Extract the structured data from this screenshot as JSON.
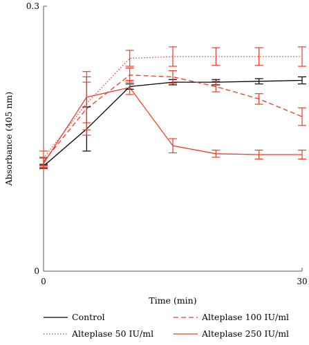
{
  "chart_data": {
    "type": "line",
    "xlabel": "Time (min)",
    "ylabel": "Absorbance (405 nm)",
    "xlim": [
      0,
      30
    ],
    "ylim": [
      0,
      0.3
    ],
    "x_ticks": [
      {
        "value": 0,
        "label": "0"
      },
      {
        "value": 30,
        "label": "30"
      }
    ],
    "y_ticks": [
      {
        "value": 0,
        "label": "0"
      },
      {
        "value": 0.3,
        "label": "0.3"
      }
    ],
    "x": [
      0,
      5,
      10,
      15,
      20,
      25,
      30
    ],
    "grid": false,
    "legend_position": "bottom",
    "series": [
      {
        "name": "Control",
        "color": "#000000",
        "dash": "solid",
        "values": [
          0.119,
          0.161,
          0.209,
          0.214,
          0.214,
          0.215,
          0.216
        ],
        "errors": [
          0.002,
          0.025,
          0.003,
          0.003,
          0.003,
          0.003,
          0.004
        ]
      },
      {
        "name": "Alteplase 50 IU/ml",
        "color": "#ee3b24",
        "dash": "dotted",
        "values": [
          0.128,
          0.19,
          0.241,
          0.243,
          0.243,
          0.243,
          0.243
        ],
        "errors": [
          0.008,
          0.03,
          0.009,
          0.011,
          0.01,
          0.01,
          0.011
        ]
      },
      {
        "name": "Alteplase 100 IU/ml",
        "color": "#ee3b24",
        "dash": "dashed",
        "values": [
          0.124,
          0.184,
          0.222,
          0.22,
          0.209,
          0.195,
          0.175
        ],
        "errors": [
          0.005,
          0.03,
          0.008,
          0.007,
          0.006,
          0.006,
          0.01
        ]
      },
      {
        "name": "Alteplase 250 IU/ml",
        "color": "#ee3b24",
        "dash": "solid",
        "values": [
          0.122,
          0.197,
          0.208,
          0.142,
          0.133,
          0.132,
          0.132
        ],
        "errors": [
          0.006,
          0.029,
          0.008,
          0.008,
          0.004,
          0.005,
          0.005
        ]
      }
    ]
  }
}
